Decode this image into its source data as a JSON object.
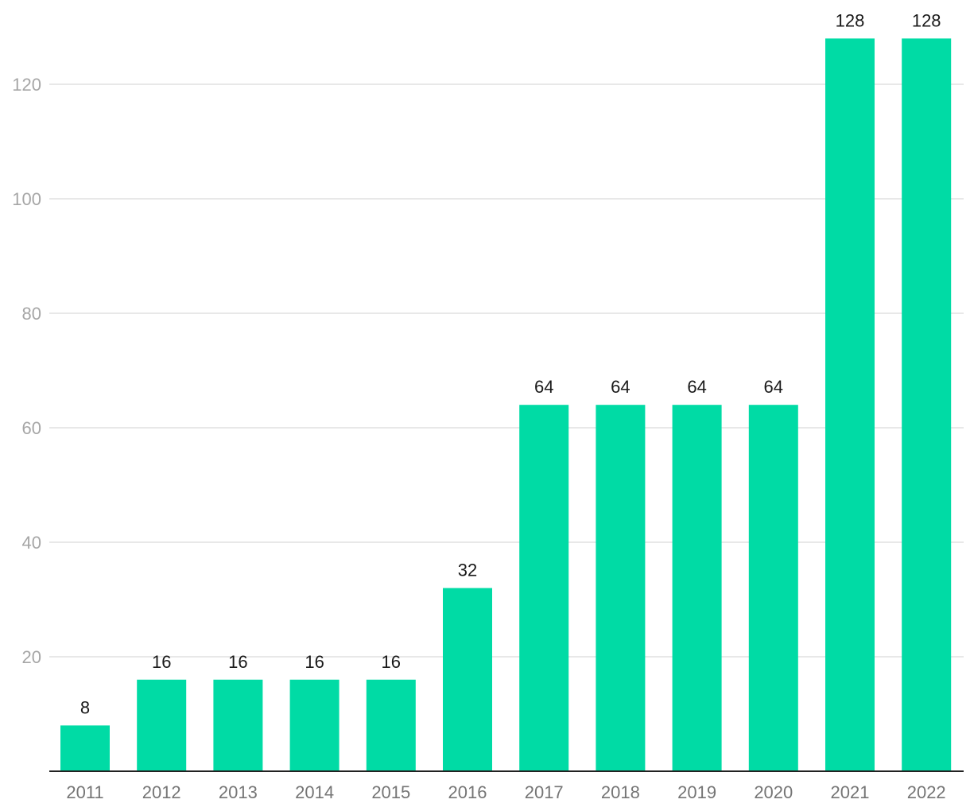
{
  "chart_data": {
    "type": "bar",
    "title": "",
    "xlabel": "",
    "ylabel": "",
    "categories": [
      "2011",
      "2012",
      "2013",
      "2014",
      "2015",
      "2016",
      "2017",
      "2018",
      "2019",
      "2020",
      "2021",
      "2022"
    ],
    "values": [
      8,
      16,
      16,
      16,
      16,
      32,
      64,
      64,
      64,
      64,
      128,
      128
    ],
    "data_labels": [
      "8",
      "16",
      "16",
      "16",
      "16",
      "32",
      "64",
      "64",
      "64",
      "64",
      "128",
      "128"
    ],
    "y_ticks": [
      20,
      40,
      60,
      80,
      100,
      120
    ],
    "y_tick_labels": [
      "20",
      "40",
      "60",
      "80",
      "100",
      "120"
    ],
    "ylim": [
      0,
      132
    ],
    "grid": true,
    "legend": "none",
    "bar_color": "#00dba5"
  }
}
